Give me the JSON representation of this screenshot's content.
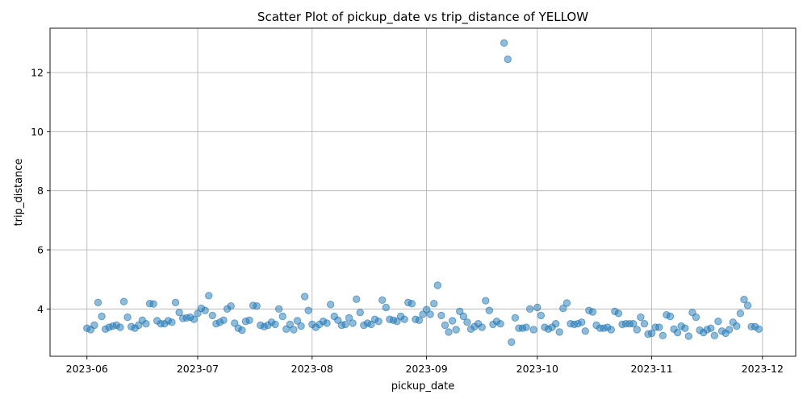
{
  "chart_data": {
    "type": "scatter",
    "title": "Scatter Plot of pickup_date vs trip_distance of YELLOW",
    "xlabel": "pickup_date",
    "ylabel": "trip_distance",
    "xlim": [
      "2023-05-22",
      "2023-12-10"
    ],
    "ylim": [
      2.4,
      13.5
    ],
    "xticks": [
      "2023-06-01",
      "2023-07-01",
      "2023-08-01",
      "2023-09-01",
      "2023-10-01",
      "2023-11-01",
      "2023-12-01"
    ],
    "xtick_labels": [
      "2023-06",
      "2023-07",
      "2023-08",
      "2023-09",
      "2023-10",
      "2023-11",
      "2023-12"
    ],
    "yticks": [
      4,
      6,
      8,
      10,
      12
    ],
    "ytick_labels": [
      "4",
      "6",
      "8",
      "10",
      "12"
    ],
    "grid": true,
    "legend": false,
    "color": "#1f77b4",
    "series": [
      {
        "x": [
          "2023-06-01",
          "2023-06-02",
          "2023-06-03",
          "2023-06-04",
          "2023-06-05",
          "2023-06-06",
          "2023-06-07",
          "2023-06-08",
          "2023-06-09",
          "2023-06-10",
          "2023-06-11",
          "2023-06-12",
          "2023-06-13",
          "2023-06-14",
          "2023-06-15",
          "2023-06-16",
          "2023-06-17",
          "2023-06-18",
          "2023-06-19",
          "2023-06-20",
          "2023-06-21",
          "2023-06-22",
          "2023-06-23",
          "2023-06-24",
          "2023-06-25",
          "2023-06-26",
          "2023-06-27",
          "2023-06-28",
          "2023-06-29",
          "2023-06-30",
          "2023-07-01",
          "2023-07-02",
          "2023-07-03",
          "2023-07-04",
          "2023-07-05",
          "2023-07-06",
          "2023-07-07",
          "2023-07-08",
          "2023-07-09",
          "2023-07-10",
          "2023-07-11",
          "2023-07-12",
          "2023-07-13",
          "2023-07-14",
          "2023-07-15",
          "2023-07-16",
          "2023-07-17",
          "2023-07-18",
          "2023-07-19",
          "2023-07-20",
          "2023-07-21",
          "2023-07-22",
          "2023-07-23",
          "2023-07-24",
          "2023-07-25",
          "2023-07-26",
          "2023-07-27",
          "2023-07-28",
          "2023-07-29",
          "2023-07-30",
          "2023-07-31",
          "2023-08-01",
          "2023-08-02",
          "2023-08-03",
          "2023-08-04",
          "2023-08-05",
          "2023-08-06",
          "2023-08-07",
          "2023-08-08",
          "2023-08-09",
          "2023-08-10",
          "2023-08-11",
          "2023-08-12",
          "2023-08-13",
          "2023-08-14",
          "2023-08-15",
          "2023-08-16",
          "2023-08-17",
          "2023-08-18",
          "2023-08-19",
          "2023-08-20",
          "2023-08-21",
          "2023-08-22",
          "2023-08-23",
          "2023-08-24",
          "2023-08-25",
          "2023-08-26",
          "2023-08-27",
          "2023-08-28",
          "2023-08-29",
          "2023-08-30",
          "2023-08-31",
          "2023-09-01",
          "2023-09-02",
          "2023-09-03",
          "2023-09-04",
          "2023-09-05",
          "2023-09-06",
          "2023-09-07",
          "2023-09-08",
          "2023-09-09",
          "2023-09-10",
          "2023-09-11",
          "2023-09-12",
          "2023-09-13",
          "2023-09-14",
          "2023-09-15",
          "2023-09-16",
          "2023-09-17",
          "2023-09-18",
          "2023-09-19",
          "2023-09-20",
          "2023-09-21",
          "2023-09-22",
          "2023-09-23",
          "2023-09-24",
          "2023-09-25",
          "2023-09-26",
          "2023-09-27",
          "2023-09-28",
          "2023-09-29",
          "2023-09-30",
          "2023-10-01",
          "2023-10-02",
          "2023-10-03",
          "2023-10-04",
          "2023-10-05",
          "2023-10-06",
          "2023-10-07",
          "2023-10-08",
          "2023-10-09",
          "2023-10-10",
          "2023-10-11",
          "2023-10-12",
          "2023-10-13",
          "2023-10-14",
          "2023-10-15",
          "2023-10-16",
          "2023-10-17",
          "2023-10-18",
          "2023-10-19",
          "2023-10-20",
          "2023-10-21",
          "2023-10-22",
          "2023-10-23",
          "2023-10-24",
          "2023-10-25",
          "2023-10-26",
          "2023-10-27",
          "2023-10-28",
          "2023-10-29",
          "2023-10-30",
          "2023-10-31",
          "2023-11-01",
          "2023-11-02",
          "2023-11-03",
          "2023-11-04",
          "2023-11-05",
          "2023-11-06",
          "2023-11-07",
          "2023-11-08",
          "2023-11-09",
          "2023-11-10",
          "2023-11-11",
          "2023-11-12",
          "2023-11-13",
          "2023-11-14",
          "2023-11-15",
          "2023-11-16",
          "2023-11-17",
          "2023-11-18",
          "2023-11-19",
          "2023-11-20",
          "2023-11-21",
          "2023-11-22",
          "2023-11-23",
          "2023-11-24",
          "2023-11-25",
          "2023-11-26",
          "2023-11-27",
          "2023-11-28",
          "2023-11-29",
          "2023-11-30"
        ],
        "y": [
          3.35,
          3.3,
          3.45,
          4.22,
          3.75,
          3.32,
          3.38,
          3.42,
          3.45,
          3.38,
          4.25,
          3.72,
          3.4,
          3.35,
          3.45,
          3.62,
          3.5,
          4.18,
          4.17,
          3.6,
          3.5,
          3.5,
          3.6,
          3.55,
          4.22,
          3.88,
          3.68,
          3.7,
          3.72,
          3.65,
          3.85,
          4.02,
          3.95,
          4.45,
          3.78,
          3.5,
          3.55,
          3.62,
          4.0,
          4.1,
          3.52,
          3.35,
          3.28,
          3.58,
          3.62,
          4.12,
          4.1,
          3.45,
          3.4,
          3.45,
          3.55,
          3.48,
          4.0,
          3.75,
          3.32,
          3.48,
          3.3,
          3.6,
          3.42,
          4.42,
          3.95,
          3.48,
          3.38,
          3.48,
          3.58,
          3.52,
          4.15,
          3.75,
          3.62,
          3.45,
          3.48,
          3.7,
          3.52,
          4.33,
          3.88,
          3.45,
          3.52,
          3.48,
          3.65,
          3.58,
          4.3,
          4.05,
          3.65,
          3.62,
          3.58,
          3.75,
          3.65,
          4.22,
          4.18,
          3.65,
          3.62,
          3.82,
          3.98,
          3.82,
          4.18,
          4.8,
          3.78,
          3.45,
          3.22,
          3.6,
          3.3,
          3.92,
          3.75,
          3.55,
          3.32,
          3.4,
          3.5,
          3.38,
          4.28,
          3.95,
          3.48,
          3.58,
          3.5,
          13.0,
          12.45,
          2.88,
          3.7,
          3.35,
          3.35,
          3.38,
          4.0,
          3.3,
          4.05,
          3.78,
          3.38,
          3.32,
          3.38,
          3.5,
          3.22,
          4.02,
          4.2,
          3.5,
          3.48,
          3.5,
          3.55,
          3.25,
          3.95,
          3.9,
          3.45,
          3.35,
          3.35,
          3.38,
          3.3,
          3.92,
          3.85,
          3.48,
          3.5,
          3.5,
          3.5,
          3.3,
          3.72,
          3.5,
          3.15,
          3.18,
          3.38,
          3.38,
          3.1,
          3.8,
          3.75,
          3.32,
          3.2,
          3.42,
          3.35,
          3.08,
          3.88,
          3.72,
          3.28,
          3.2,
          3.3,
          3.35,
          3.1,
          3.58,
          3.25,
          3.18,
          3.3,
          3.55,
          3.42,
          3.85,
          4.32,
          4.12,
          3.4,
          3.4,
          3.32
        ]
      }
    ]
  }
}
